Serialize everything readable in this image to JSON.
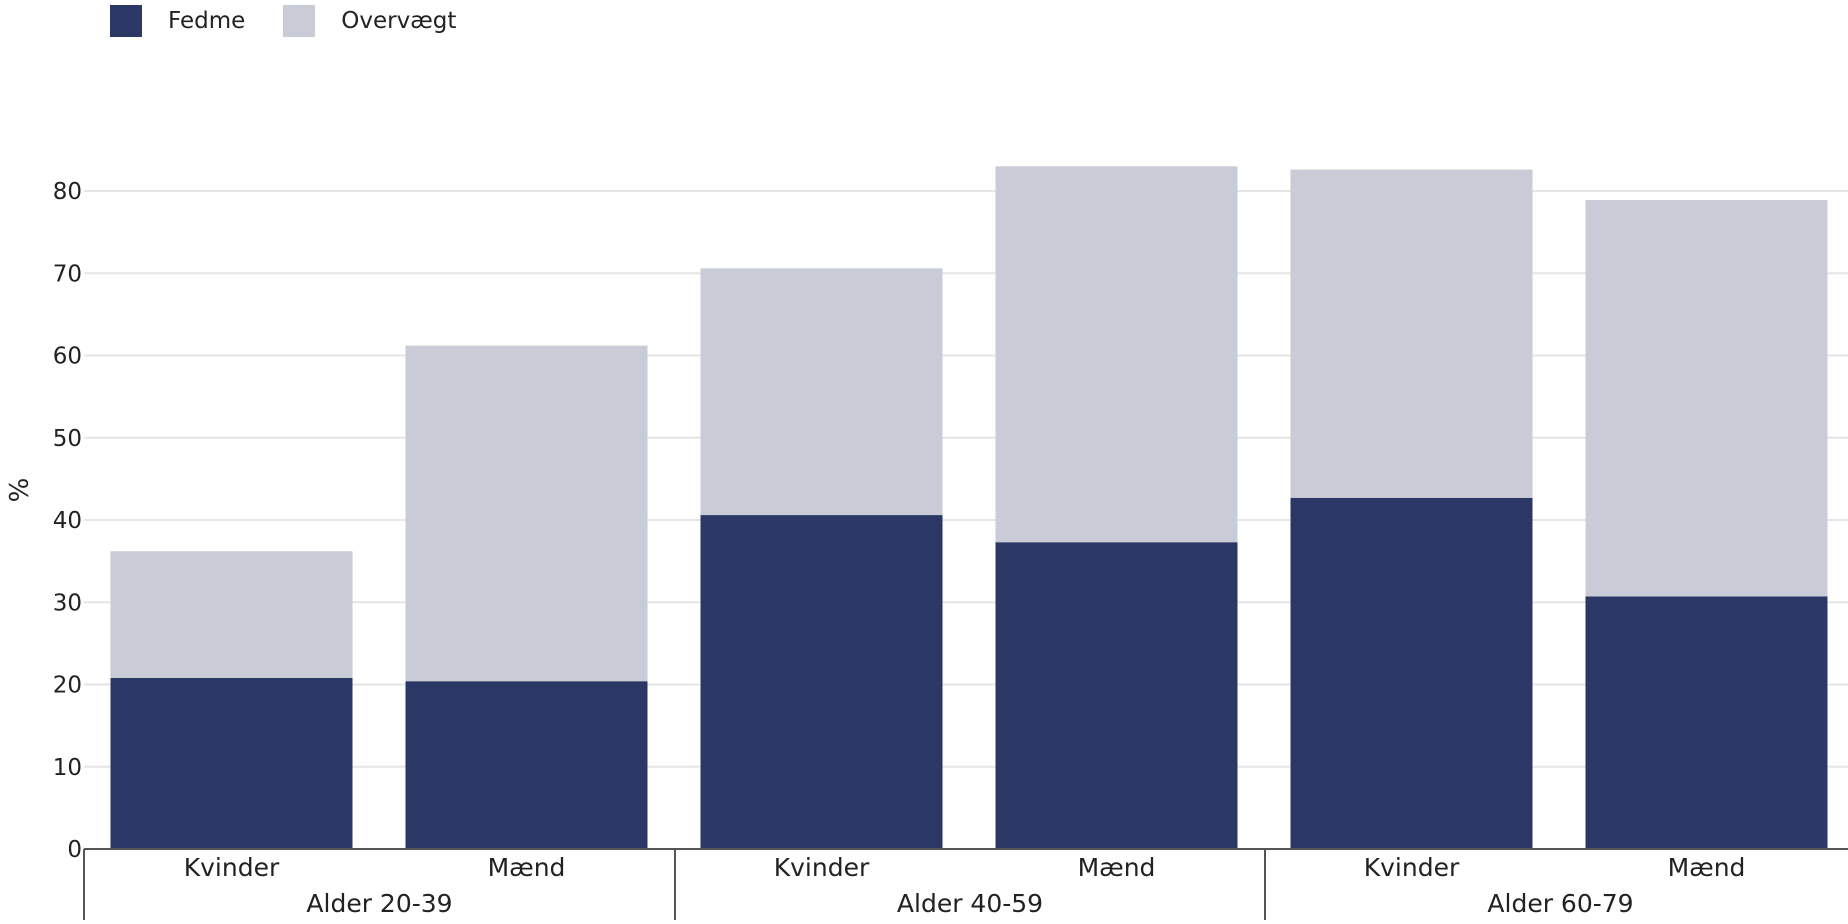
{
  "chart_data": {
    "type": "bar",
    "stacked": true,
    "ylabel": "%",
    "ylim": [
      0,
      86
    ],
    "yticks": [
      0,
      10,
      20,
      30,
      40,
      50,
      60,
      70,
      80
    ],
    "grid": true,
    "legend_position": "top-left",
    "groups": [
      {
        "label": "Alder 20-39",
        "categories": [
          "Kvinder",
          "Mænd"
        ]
      },
      {
        "label": "Alder 40-59",
        "categories": [
          "Kvinder",
          "Mænd"
        ]
      },
      {
        "label": "Alder 60-79",
        "categories": [
          "Kvinder",
          "Mænd"
        ]
      }
    ],
    "series": [
      {
        "name": "Fedme",
        "color": "#2b3765",
        "values": [
          20.8,
          20.4,
          40.6,
          37.3,
          42.7,
          30.7
        ]
      },
      {
        "name": "Overvægt",
        "color": "#c9cbd7",
        "values": [
          15.4,
          40.8,
          30.0,
          45.7,
          39.9,
          48.2
        ]
      }
    ]
  }
}
